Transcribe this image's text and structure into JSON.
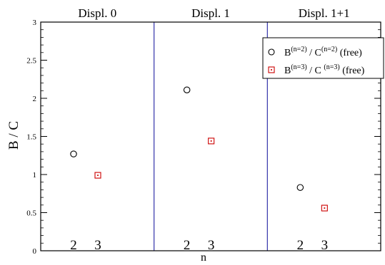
{
  "chart_data": {
    "type": "scatter",
    "ylabel": "B / C",
    "xlabel": "n",
    "ylim": [
      0,
      3
    ],
    "yticks": [
      "0",
      "0.5",
      "1",
      "1.5",
      "2",
      "2.5",
      "3"
    ],
    "y_minor_step": 0.1,
    "grid": false,
    "legend_position": "top-right",
    "panel_x_labels": [
      "2",
      "3"
    ],
    "colors": {
      "series_a": "#000000",
      "series_b": "#cc0000",
      "divider": "#3333aa",
      "axes": "#000000"
    },
    "panels": [
      {
        "title": "Displ. 0",
        "points": [
          {
            "series": 0,
            "n": 2,
            "y": 1.27
          },
          {
            "series": 1,
            "n": 3,
            "y": 0.99
          }
        ]
      },
      {
        "title": "Displ. 1",
        "points": [
          {
            "series": 0,
            "n": 2,
            "y": 2.11
          },
          {
            "series": 1,
            "n": 3,
            "y": 1.44
          }
        ]
      },
      {
        "title": "Displ. 1+1",
        "points": [
          {
            "series": 0,
            "n": 2,
            "y": 0.83
          },
          {
            "series": 1,
            "n": 3,
            "y": 0.56
          }
        ]
      }
    ],
    "legend": [
      {
        "marker": "circle",
        "base": "B",
        "sup1": "(n=2)",
        "mid": " / C",
        "sup2": "(n=2)",
        "tail": " (free)"
      },
      {
        "marker": "square",
        "base": "B",
        "sup1": "(n=3)",
        "mid": " / C ",
        "sup2": "(n=3)",
        "tail": " (free)"
      }
    ]
  }
}
